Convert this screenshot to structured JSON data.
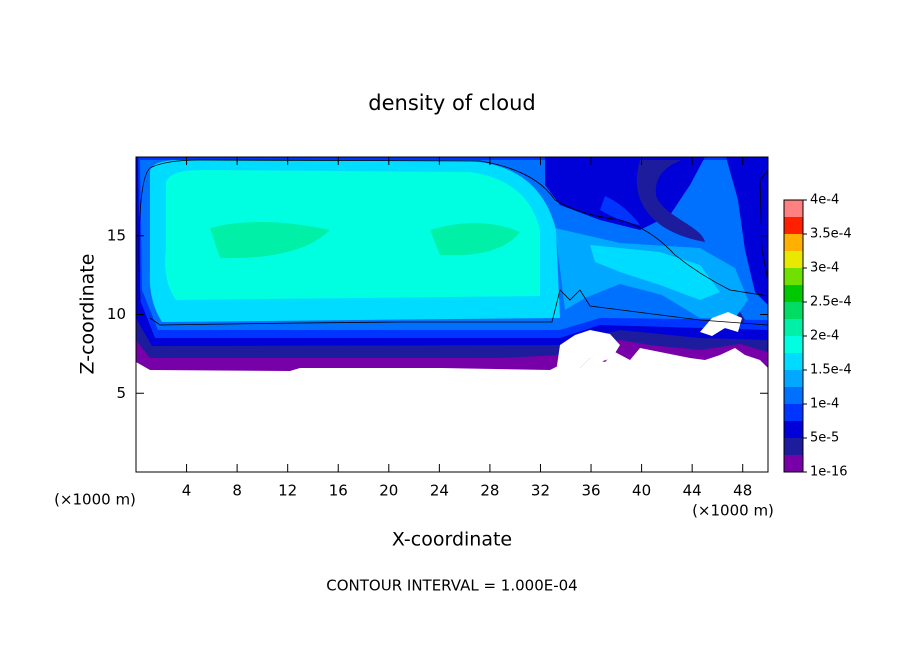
{
  "chart_data": {
    "type": "contour",
    "title": "density of cloud",
    "xlabel": "X-coordinate",
    "ylabel": "Z-coordinate",
    "x_unit": "(×1000 m)",
    "y_unit": "(×1000 m)",
    "footer": "CONTOUR INTERVAL = 1.000E-04",
    "xlim": [
      0,
      50
    ],
    "xticks": [
      4,
      8,
      12,
      16,
      20,
      24,
      28,
      32,
      36,
      40,
      44,
      48
    ],
    "ylim": [
      0,
      20
    ],
    "yticks": [
      5,
      10,
      15
    ],
    "clim": [
      1e-16,
      0.0004
    ],
    "cticks": [
      {
        "value": 1e-16,
        "label": "1e-16"
      },
      {
        "value": 5e-05,
        "label": "5e-5"
      },
      {
        "value": 0.0001,
        "label": "1e-4"
      },
      {
        "value": 0.00015,
        "label": "1.5e-4"
      },
      {
        "value": 0.0002,
        "label": "2e-4"
      },
      {
        "value": 0.00025,
        "label": "2.5e-4"
      },
      {
        "value": 0.0003,
        "label": "3e-4"
      },
      {
        "value": 0.00035,
        "label": "3.5e-4"
      },
      {
        "value": 0.0004,
        "label": "4e-4"
      }
    ],
    "colors": [
      "#7800a8",
      "#1c1c9c",
      "#0000d8",
      "#0034ff",
      "#0070ff",
      "#00a8ff",
      "#00dcff",
      "#00ffe0",
      "#00f0a8",
      "#00dc64",
      "#00c800",
      "#70e000",
      "#e8e800",
      "#ffb000",
      "#ff2000",
      "#ff8080"
    ]
  }
}
